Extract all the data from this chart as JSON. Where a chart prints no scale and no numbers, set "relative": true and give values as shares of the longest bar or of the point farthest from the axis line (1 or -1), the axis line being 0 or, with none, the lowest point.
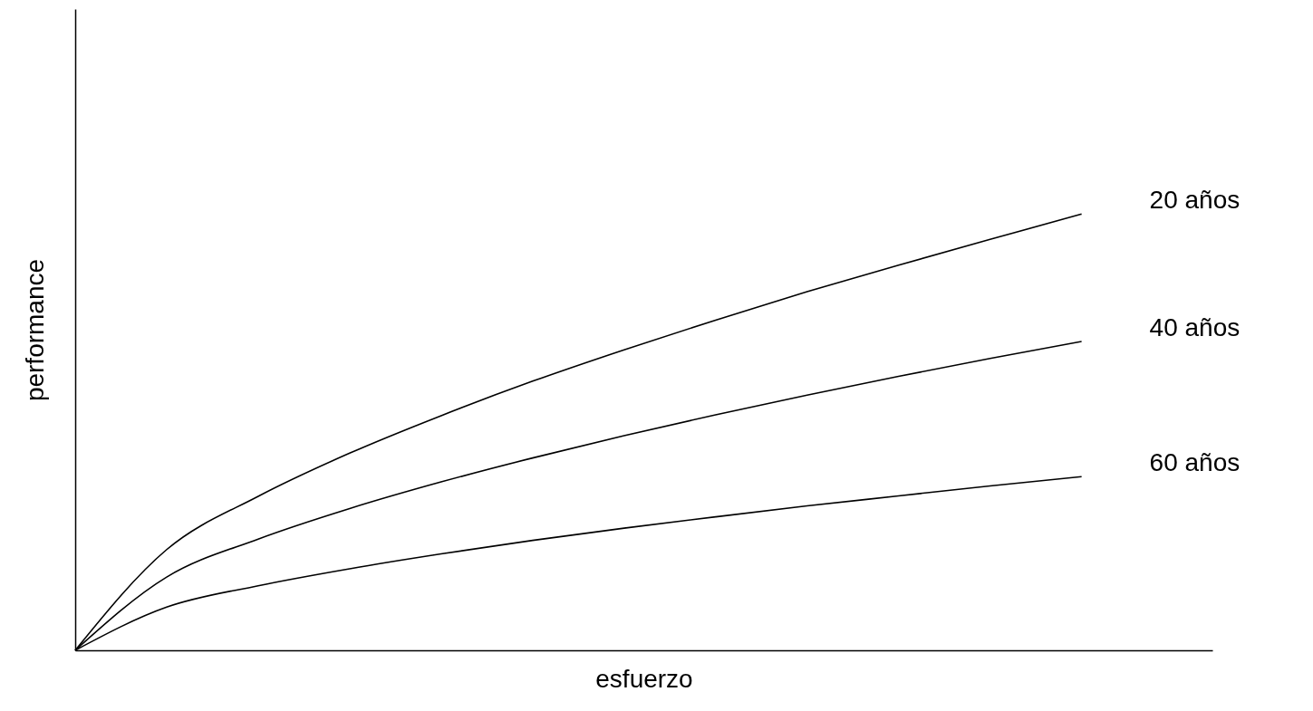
{
  "chart_data": {
    "type": "line",
    "relative": true,
    "xlabel": "esfuerzo",
    "ylabel": "performance",
    "legend": false,
    "grid": false,
    "marker": "none",
    "line_style": "solid",
    "categories": [
      null,
      null,
      null,
      null,
      null,
      null,
      null,
      null,
      null,
      null,
      null,
      null
    ],
    "series": [
      {
        "name": "20 años",
        "color": "#000000",
        "values": [
          0,
          0.231,
          0.353,
          0.452,
          0.538,
          0.617,
          0.689,
          0.757,
          0.822,
          0.883,
          0.942,
          1
        ]
      },
      {
        "name": "40 años",
        "color": "#000000",
        "values": [
          0,
          0.168,
          0.255,
          0.325,
          0.386,
          0.441,
          0.492,
          0.54,
          0.585,
          0.628,
          0.669,
          0.708
        ]
      },
      {
        "name": "60 años",
        "color": "#000000",
        "values": [
          0,
          0.099,
          0.148,
          0.187,
          0.221,
          0.252,
          0.28,
          0.306,
          0.331,
          0.354,
          0.377,
          0.398
        ]
      }
    ]
  }
}
